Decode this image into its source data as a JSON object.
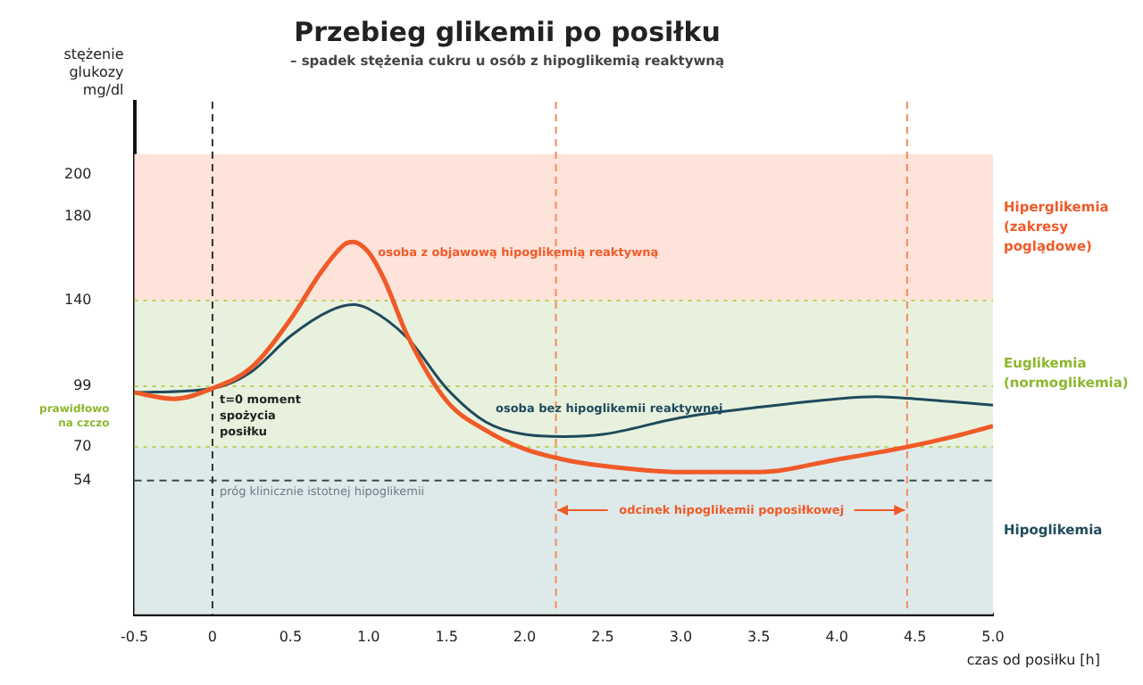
{
  "chart_data": {
    "type": "line",
    "title": "Przebieg glikemii po posiłku",
    "subtitle": "– spadek stężenia cukru u osób z hipoglikemią reaktywną",
    "xlabel": "czas od posiłku [h]",
    "ylabel": "stężenie glukozy mg/dl",
    "xlim": [
      -0.5,
      5.0
    ],
    "xticks": [
      -0.5,
      0,
      0.5,
      {
        "value": 1,
        "label": "1.0"
      },
      1.5,
      {
        "value": 2,
        "label": "2.0"
      },
      2.5,
      {
        "value": 3,
        "label": "3.0"
      },
      3.5,
      {
        "value": 4,
        "label": "4.0"
      },
      4.5,
      {
        "value": 5,
        "label": "5.0"
      }
    ],
    "ylim": [
      -10,
      235
    ],
    "yticks": [
      54,
      70,
      99,
      140,
      180,
      200
    ],
    "series": [
      {
        "name": "osoba z objawową hipoglikemią reaktywną",
        "color": "#f05a28",
        "x": [
          -0.5,
          -0.25,
          0,
          0.25,
          0.5,
          0.7,
          0.85,
          0.9,
          1.0,
          1.1,
          1.25,
          1.5,
          1.75,
          2.0,
          2.25,
          2.5,
          3.0,
          3.5,
          4.0,
          4.45,
          4.75,
          5.0
        ],
        "values": [
          96,
          93,
          98,
          108,
          131,
          154,
          167,
          168,
          163,
          150,
          123,
          92,
          78,
          69,
          64,
          61,
          58,
          58,
          64,
          70,
          75,
          80
        ]
      },
      {
        "name": "osoba bez hipoglikemii reaktywnej",
        "color": "#1f4a5c",
        "x": [
          -0.5,
          0,
          0.25,
          0.5,
          0.75,
          0.9,
          1.0,
          1.25,
          1.5,
          1.75,
          2.0,
          2.25,
          2.5,
          3.0,
          3.5,
          4.0,
          4.25,
          4.5,
          5.0
        ],
        "values": [
          96,
          98,
          106,
          123,
          135,
          138,
          136,
          122,
          98,
          82,
          76,
          75,
          76,
          84,
          89,
          93,
          94,
          93,
          90
        ]
      }
    ],
    "bands": [
      {
        "axis": "y",
        "from": 140,
        "to": 210,
        "label": "Hiperglikemia (zakresy poglądowe)",
        "color": "#fde3da"
      },
      {
        "axis": "y",
        "from": 70,
        "to": 140,
        "label": "Euglikemia (normoglikemia)",
        "color": "#e8f1de"
      },
      {
        "axis": "y",
        "from": -10,
        "to": 70,
        "label": "Hipoglikemia",
        "color": "#deeaea"
      }
    ],
    "ref_lines": [
      {
        "axis": "y",
        "value": 140,
        "color": "#b9d25e",
        "line_style": "dotted"
      },
      {
        "axis": "y",
        "value": 99,
        "color": "#b9d25e",
        "line_style": "dotted"
      },
      {
        "axis": "y",
        "value": 70,
        "color": "#b9d25e",
        "line_style": "dotted"
      },
      {
        "axis": "y",
        "value": 54,
        "label": "próg klinicznie istotnej hipoglikemii",
        "color": "#3a4a55",
        "line_style": "dashed"
      },
      {
        "axis": "x",
        "value": 0,
        "label": "t=0 moment spożycia posiłku",
        "color": "#333333",
        "line_style": "dashed"
      },
      {
        "axis": "x",
        "value": 2.2,
        "label": "odcinek hipoglikemii poposiłkowej",
        "color": "#f58a60",
        "line_style": "dashed"
      },
      {
        "axis": "x",
        "value": 4.45,
        "color": "#f58a60",
        "line_style": "dashed"
      }
    ],
    "annotations": [
      "prawidłowo na czczo"
    ],
    "grid": false,
    "legend": false,
    "marker": "none",
    "line_style": "solid"
  }
}
